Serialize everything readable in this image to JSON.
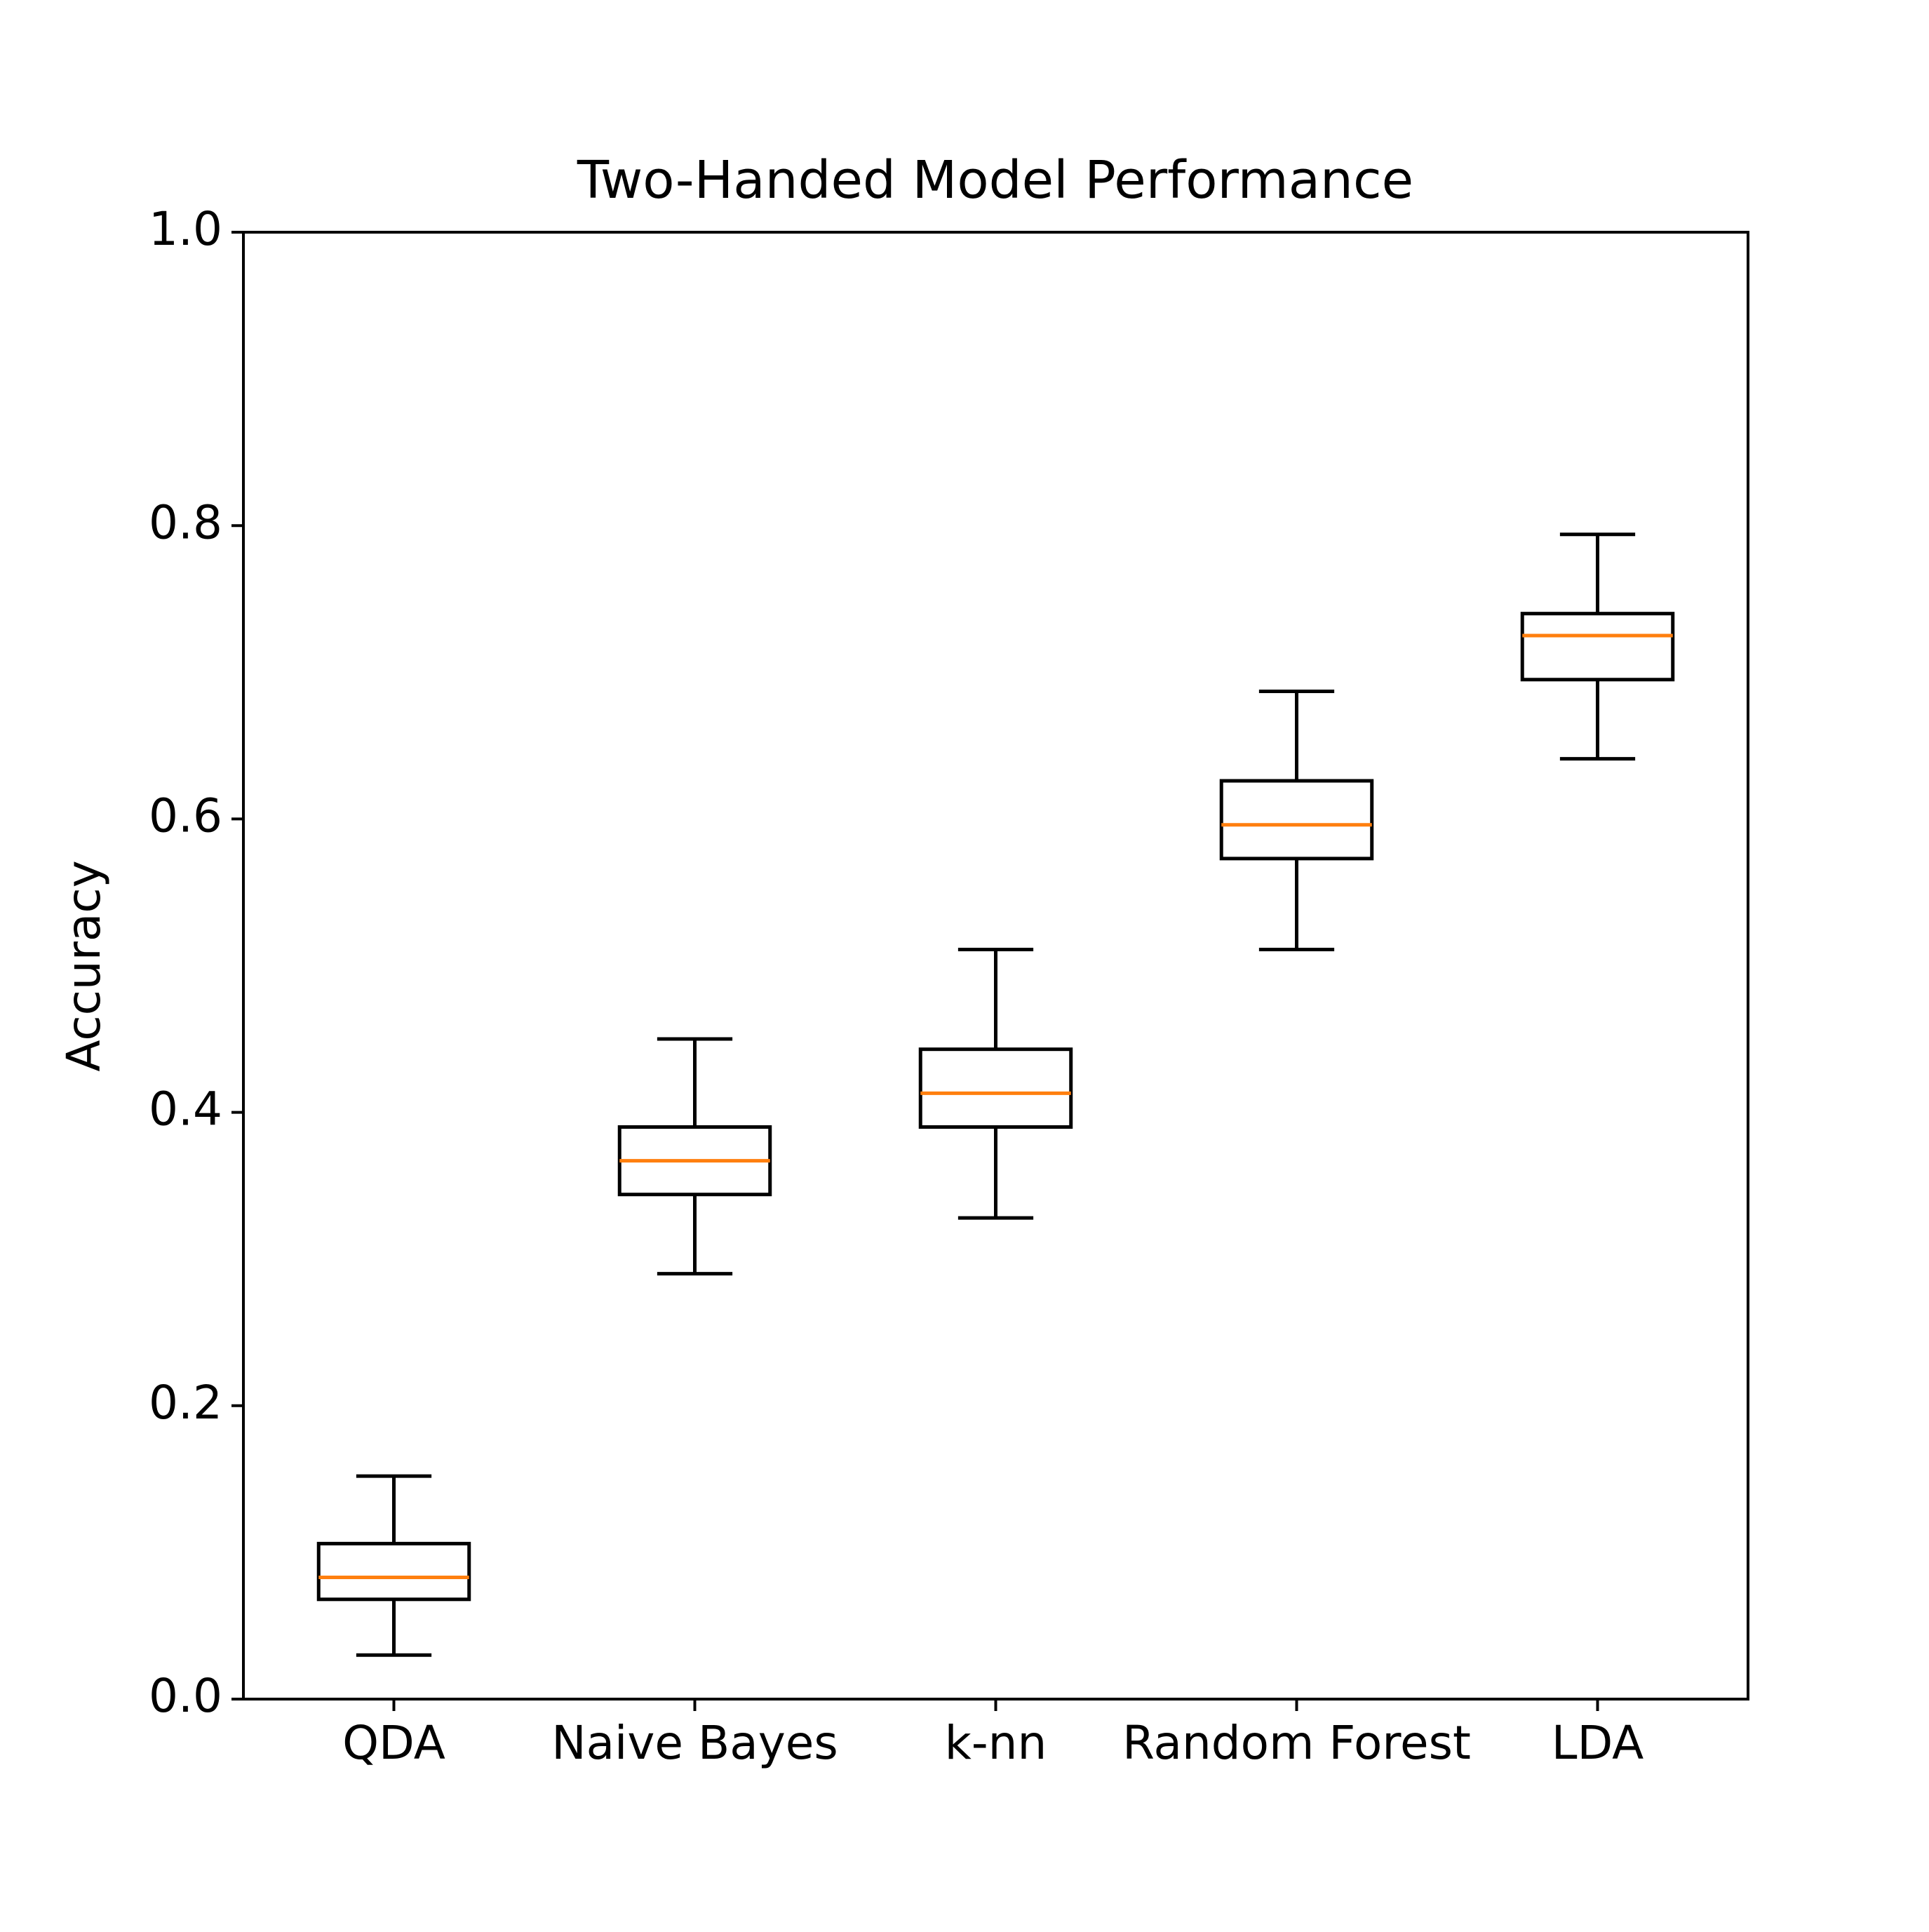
{
  "chart_data": {
    "type": "boxplot",
    "title": "Two-Handed Model Performance",
    "xlabel": "",
    "ylabel": "Accuracy",
    "ylim": [
      0.0,
      1.0
    ],
    "yticks": [
      "0.0",
      "0.2",
      "0.4",
      "0.6",
      "0.8",
      "1.0"
    ],
    "categories": [
      "QDA",
      "Naive Bayes",
      "k-nn",
      "Random Forest",
      "LDA"
    ],
    "boxes": [
      {
        "category": "QDA",
        "whisker_low": 0.03,
        "q1": 0.068,
        "median": 0.083,
        "q3": 0.106,
        "whisker_high": 0.152
      },
      {
        "category": "Naive Bayes",
        "whisker_low": 0.29,
        "q1": 0.344,
        "median": 0.367,
        "q3": 0.39,
        "whisker_high": 0.45
      },
      {
        "category": "k-nn",
        "whisker_low": 0.328,
        "q1": 0.39,
        "median": 0.413,
        "q3": 0.443,
        "whisker_high": 0.511
      },
      {
        "category": "Random Forest",
        "whisker_low": 0.511,
        "q1": 0.573,
        "median": 0.596,
        "q3": 0.626,
        "whisker_high": 0.687
      },
      {
        "category": "LDA",
        "whisker_low": 0.641,
        "q1": 0.695,
        "median": 0.725,
        "q3": 0.74,
        "whisker_high": 0.794
      }
    ],
    "grid": false,
    "legend": "none"
  },
  "colors": {
    "box": "#000000",
    "median": "#ff7f0e",
    "background": "#ffffff"
  }
}
